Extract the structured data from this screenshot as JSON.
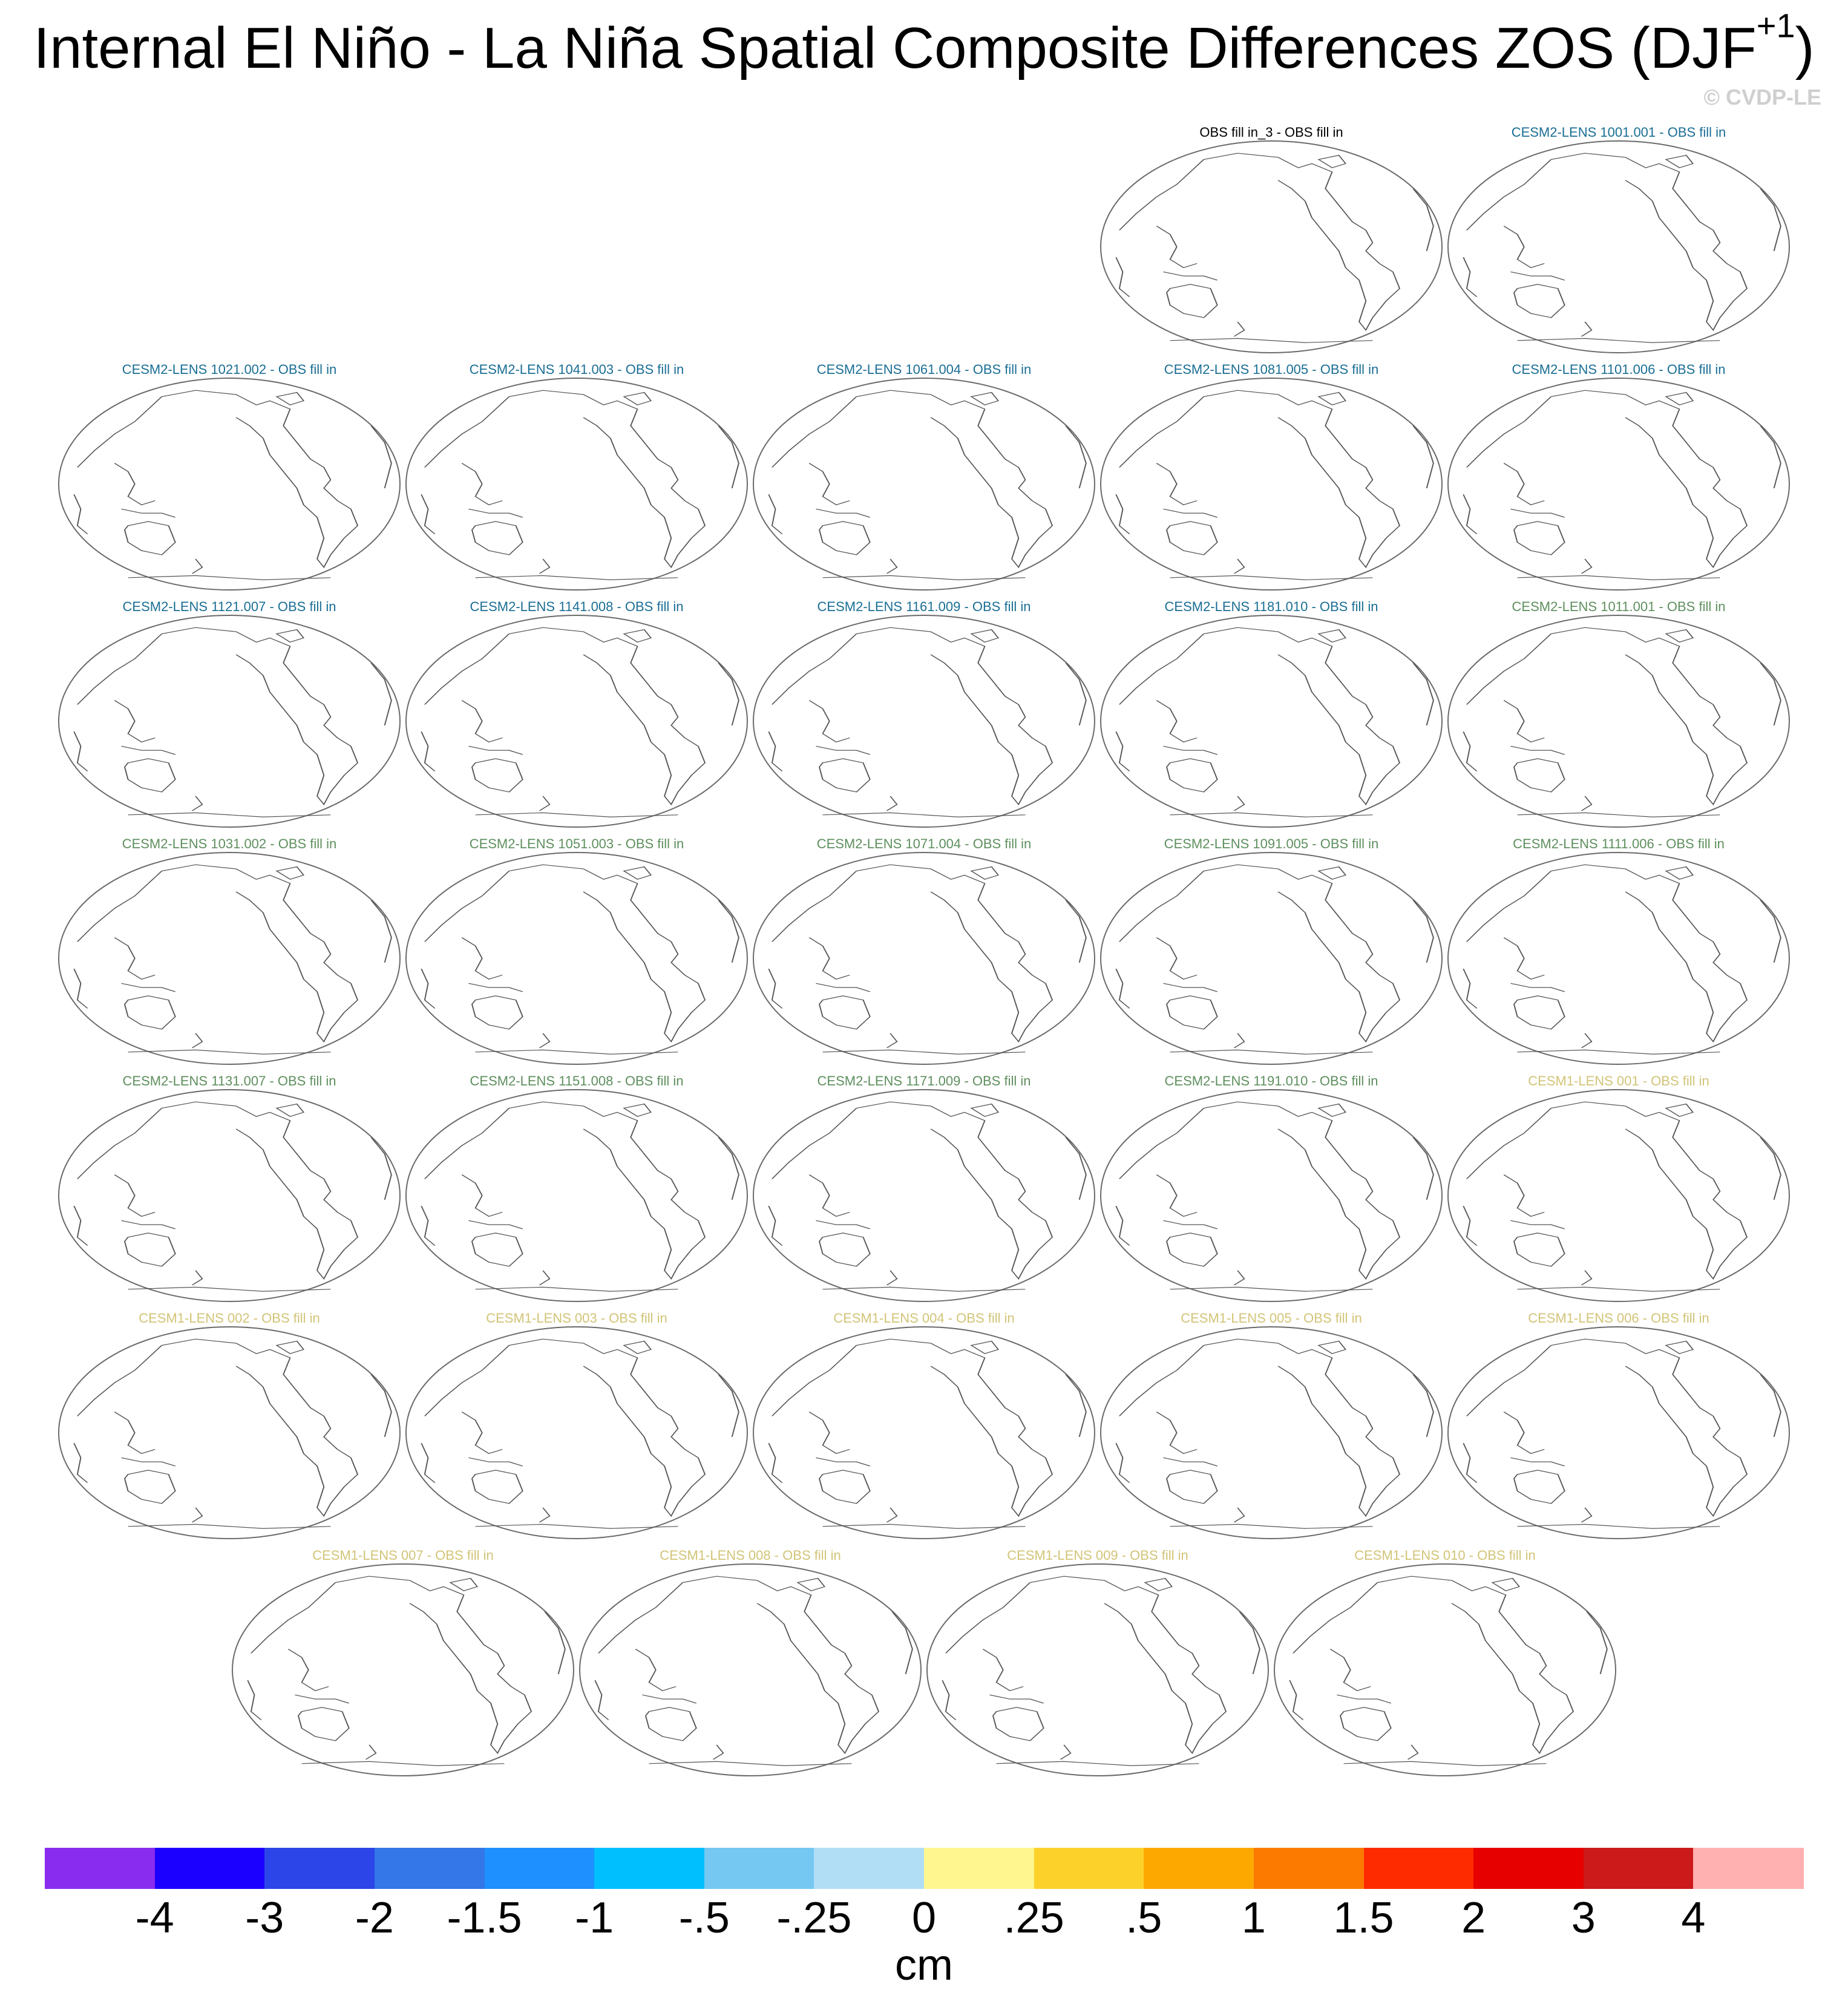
{
  "title": {
    "text": "Internal El Niño - La Niña Spatial Composite Differences ZOS (DJF",
    "superscript": "+1",
    "suffix": ")"
  },
  "copyright": "© CVDP-LE",
  "panels": [
    {
      "title": "OBS fill in_3 - OBS fill in",
      "color": "#000000"
    },
    {
      "title": "CESM2-LENS 1001.001 - OBS fill in",
      "color": "#1a6e94"
    },
    {
      "title": "CESM2-LENS 1021.002 - OBS fill in",
      "color": "#1a6e94"
    },
    {
      "title": "CESM2-LENS 1041.003 - OBS fill in",
      "color": "#1a6e94"
    },
    {
      "title": "CESM2-LENS 1061.004 - OBS fill in",
      "color": "#1a6e94"
    },
    {
      "title": "CESM2-LENS 1081.005 - OBS fill in",
      "color": "#1a6e94"
    },
    {
      "title": "CESM2-LENS 1101.006 - OBS fill in",
      "color": "#1a6e94"
    },
    {
      "title": "CESM2-LENS 1121.007 - OBS fill in",
      "color": "#1a6e94"
    },
    {
      "title": "CESM2-LENS 1141.008 - OBS fill in",
      "color": "#1a6e94"
    },
    {
      "title": "CESM2-LENS 1161.009 - OBS fill in",
      "color": "#1a6e94"
    },
    {
      "title": "CESM2-LENS 1181.010 - OBS fill in",
      "color": "#1a6e94"
    },
    {
      "title": "CESM2-LENS 1011.001 - OBS fill in",
      "color": "#5e8f5e"
    },
    {
      "title": "CESM2-LENS 1031.002 - OBS fill in",
      "color": "#5e8f5e"
    },
    {
      "title": "CESM2-LENS 1051.003 - OBS fill in",
      "color": "#5e8f5e"
    },
    {
      "title": "CESM2-LENS 1071.004 - OBS fill in",
      "color": "#5e8f5e"
    },
    {
      "title": "CESM2-LENS 1091.005 - OBS fill in",
      "color": "#5e8f5e"
    },
    {
      "title": "CESM2-LENS 1111.006 - OBS fill in",
      "color": "#5e8f5e"
    },
    {
      "title": "CESM2-LENS 1131.007 - OBS fill in",
      "color": "#5e8f5e"
    },
    {
      "title": "CESM2-LENS 1151.008 - OBS fill in",
      "color": "#5e8f5e"
    },
    {
      "title": "CESM2-LENS 1171.009 - OBS fill in",
      "color": "#5e8f5e"
    },
    {
      "title": "CESM2-LENS 1191.010 - OBS fill in",
      "color": "#5e8f5e"
    },
    {
      "title": "CESM1-LENS 001 - OBS fill in",
      "color": "#d2c477"
    },
    {
      "title": "CESM1-LENS 002 - OBS fill in",
      "color": "#d2c477"
    },
    {
      "title": "CESM1-LENS 003 - OBS fill in",
      "color": "#d2c477"
    },
    {
      "title": "CESM1-LENS 004 - OBS fill in",
      "color": "#d2c477"
    },
    {
      "title": "CESM1-LENS 005 - OBS fill in",
      "color": "#d2c477"
    },
    {
      "title": "CESM1-LENS 006 - OBS fill in",
      "color": "#d2c477"
    },
    {
      "title": "CESM1-LENS 007 - OBS fill in",
      "color": "#d2c477"
    },
    {
      "title": "CESM1-LENS 008 - OBS fill in",
      "color": "#d2c477"
    },
    {
      "title": "CESM1-LENS 009 - OBS fill in",
      "color": "#d2c477"
    },
    {
      "title": "CESM1-LENS 010 - OBS fill in",
      "color": "#d2c477"
    }
  ],
  "colorbar": {
    "colors": [
      "#8a2bf0",
      "#1c00ff",
      "#2c45e8",
      "#3377e8",
      "#1e90ff",
      "#00bfff",
      "#74c8f2",
      "#b2def5",
      "#fff68f",
      "#fcd22a",
      "#fca800",
      "#fc7a00",
      "#ff2b00",
      "#e60000",
      "#cc1a1a",
      "#ffb0b0"
    ],
    "labels": [
      "-4",
      "-3",
      "-2",
      "-1.5",
      "-1",
      "-.5",
      "-.25",
      "0",
      ".25",
      ".5",
      "1",
      "1.5",
      "2",
      "3",
      "4"
    ],
    "units": "cm"
  }
}
